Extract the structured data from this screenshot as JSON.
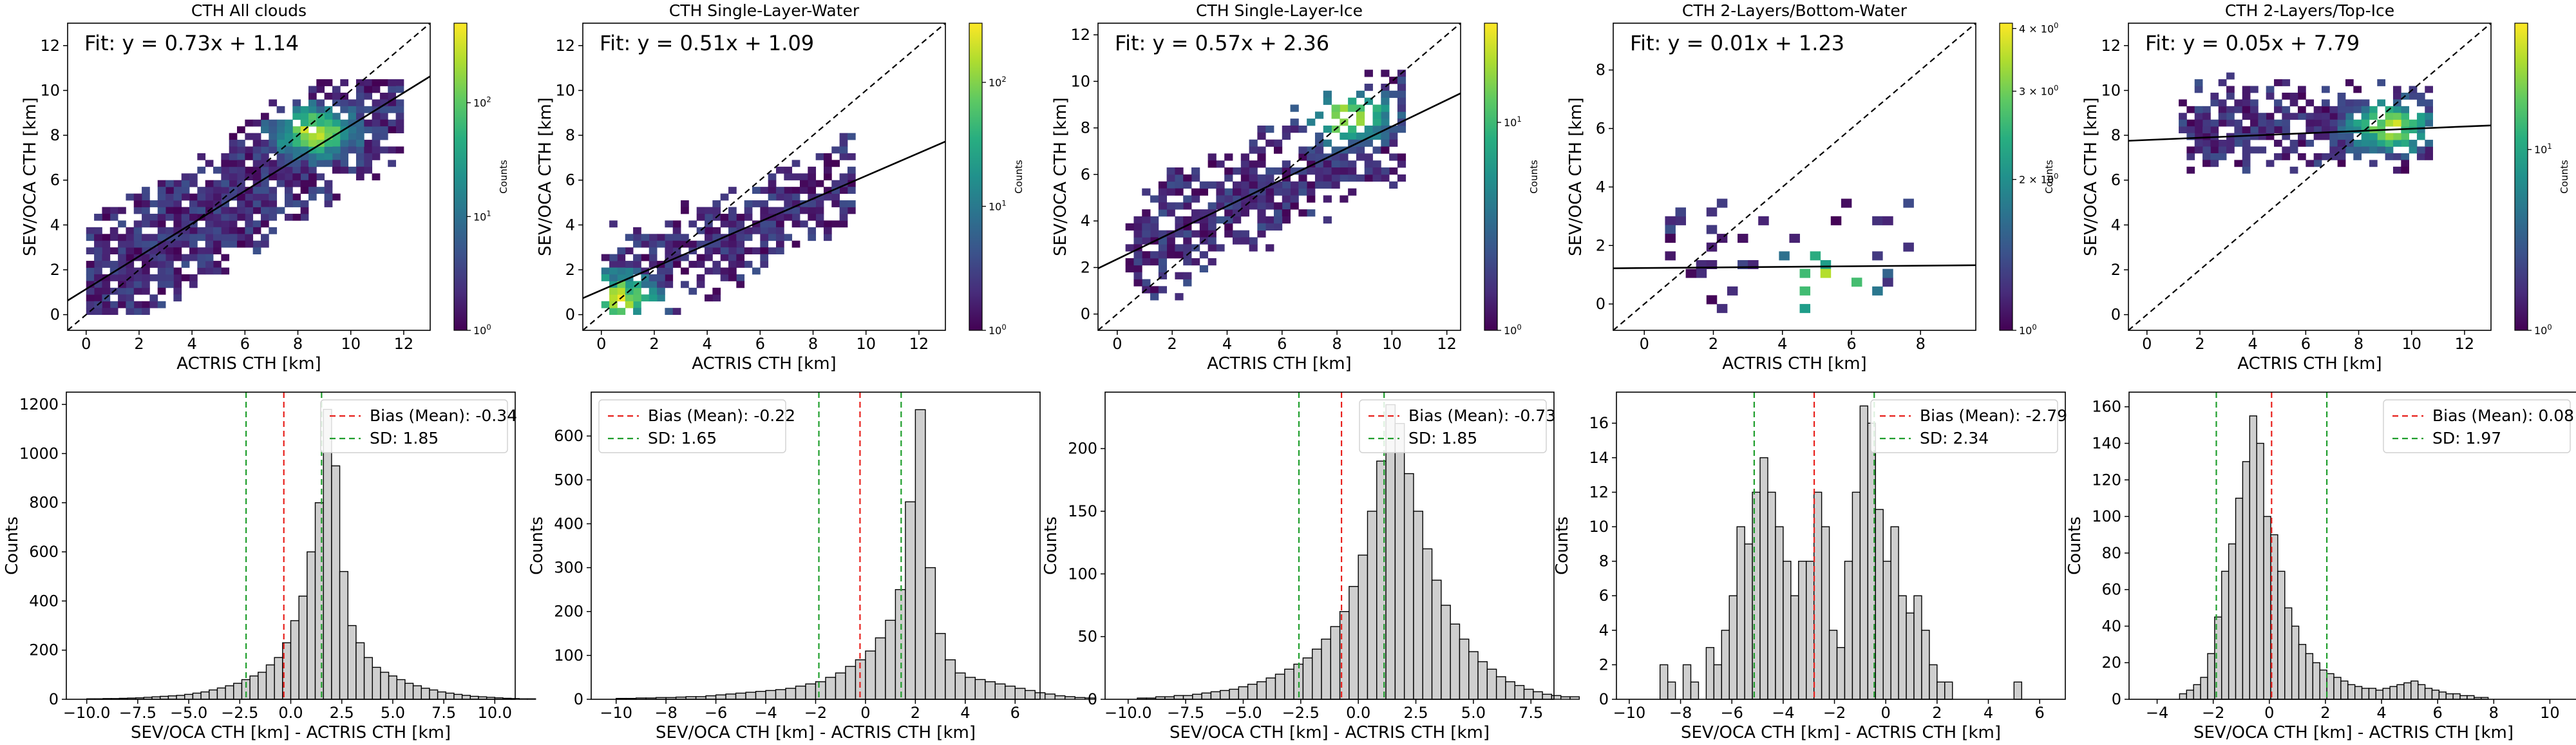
{
  "figure": {
    "colorbar_label": "Counts"
  },
  "chart_data": [
    {
      "type": "heatmap",
      "title": "CTH All clouds",
      "xlabel": "ACTRIS CTH [km]",
      "ylabel": "SEV/OCA CTH [km]",
      "fit_text": "Fit: y = 0.73x + 1.14",
      "fit": {
        "slope": 0.73,
        "intercept": 1.14
      },
      "xlim": [
        -0.7,
        13.0
      ],
      "ylim": [
        -0.7,
        13.0
      ],
      "xticks": [
        0,
        2,
        4,
        6,
        8,
        10,
        12
      ],
      "yticks": [
        0,
        2,
        4,
        6,
        8,
        10,
        12
      ],
      "one_to_one_line": true,
      "colorbar": {
        "scale": "log",
        "ticks": [
          "10^0",
          "10^1",
          "10^2"
        ],
        "min": 1,
        "max": 500
      },
      "density": {
        "mode": "diag",
        "xrange": [
          0.0,
          12.0
        ],
        "yrange": [
          0.0,
          10.5
        ],
        "n": 1700,
        "seed": 11,
        "spread": 1.4,
        "hot": [
          8.5,
          8.0
        ],
        "fill": 0.75
      }
    },
    {
      "type": "heatmap",
      "title": "CTH Single-Layer-Water",
      "xlabel": "ACTRIS CTH [km]",
      "ylabel": "SEV/OCA CTH [km]",
      "fit_text": "Fit: y = 0.51x + 1.09",
      "fit": {
        "slope": 0.51,
        "intercept": 1.09
      },
      "xlim": [
        -0.7,
        13.0
      ],
      "ylim": [
        -0.7,
        13.0
      ],
      "xticks": [
        0,
        2,
        4,
        6,
        8,
        10,
        12
      ],
      "yticks": [
        0,
        2,
        4,
        6,
        8,
        10,
        12
      ],
      "one_to_one_line": true,
      "colorbar": {
        "scale": "log",
        "ticks": [
          "10^0",
          "10^1",
          "10^2"
        ],
        "min": 1,
        "max": 300
      },
      "density": {
        "mode": "diag",
        "xrange": [
          0.0,
          9.5
        ],
        "yrange": [
          0.0,
          8.2
        ],
        "n": 800,
        "seed": 23,
        "spread": 1.2,
        "hot": [
          0.5,
          0.6
        ],
        "fill": 0.55
      }
    },
    {
      "type": "heatmap",
      "title": "CTH Single-Layer-Ice",
      "xlabel": "ACTRIS CTH [km]",
      "ylabel": "SEV/OCA CTH [km]",
      "fit_text": "Fit: y = 0.57x + 2.36",
      "fit": {
        "slope": 0.57,
        "intercept": 2.36
      },
      "xlim": [
        -0.7,
        12.5
      ],
      "ylim": [
        -0.7,
        12.5
      ],
      "xticks": [
        0,
        2,
        4,
        6,
        8,
        10,
        12
      ],
      "yticks": [
        0,
        2,
        4,
        6,
        8,
        10,
        12
      ],
      "one_to_one_line": true,
      "colorbar": {
        "scale": "log",
        "ticks": [
          "10^0",
          "10^1"
        ],
        "min": 1,
        "max": 30
      },
      "density": {
        "mode": "diag",
        "xrange": [
          0.5,
          10.5
        ],
        "yrange": [
          0.8,
          10.5
        ],
        "n": 900,
        "seed": 37,
        "spread": 1.3,
        "hot": [
          8.3,
          8.3
        ],
        "fill": 0.6
      }
    },
    {
      "type": "heatmap",
      "title": "CTH 2-Layers/Bottom-Water",
      "xlabel": "ACTRIS CTH [km]",
      "ylabel": "SEV/OCA CTH [km]",
      "fit_text": "Fit: y = 0.01x + 1.23",
      "fit": {
        "slope": 0.01,
        "intercept": 1.23
      },
      "xlim": [
        -0.9,
        9.6
      ],
      "ylim": [
        -0.9,
        9.6
      ],
      "xticks": [
        0,
        2,
        4,
        6,
        8
      ],
      "yticks": [
        0,
        2,
        4,
        6,
        8
      ],
      "one_to_one_line": true,
      "colorbar": {
        "scale": "log",
        "ticks": [
          "10^0",
          "2 × 10^0",
          "3 × 10^0",
          "4 × 10^0"
        ],
        "tick_values": [
          1,
          2,
          3,
          4
        ],
        "min": 1,
        "max": 4.1
      },
      "density": {
        "mode": "flat",
        "xrange": [
          0.5,
          7.8
        ],
        "yrange": [
          -0.2,
          3.5
        ],
        "n": 120,
        "seed": 41,
        "spread": 1.0,
        "hot": [
          5.0,
          0.6
        ],
        "fill": 0.35
      }
    },
    {
      "type": "heatmap",
      "title": "CTH 2-Layers/Top-Ice",
      "xlabel": "ACTRIS CTH [km]",
      "ylabel": "SEV/OCA CTH [km]",
      "fit_text": "Fit: y = 0.05x + 7.79",
      "fit": {
        "slope": 0.05,
        "intercept": 7.79
      },
      "xlim": [
        -0.7,
        13.0
      ],
      "ylim": [
        -0.7,
        13.0
      ],
      "xticks": [
        0,
        2,
        4,
        6,
        8,
        10,
        12
      ],
      "yticks": [
        0,
        2,
        4,
        6,
        8,
        10,
        12
      ],
      "one_to_one_line": true,
      "colorbar": {
        "scale": "log",
        "ticks": [
          "10^0",
          "10^1"
        ],
        "min": 1,
        "max": 50
      },
      "density": {
        "mode": "band",
        "xrange": [
          1.3,
          10.8
        ],
        "yrange": [
          6.2,
          10.6
        ],
        "n": 650,
        "seed": 53,
        "spread": 1.0,
        "hot": [
          9.0,
          8.2
        ],
        "fill": 0.65
      }
    },
    {
      "type": "bar",
      "subtype": "histogram",
      "xlabel": "SEV/OCA CTH [km] - ACTRIS CTH [km]",
      "ylabel": "Counts",
      "xlim": [
        -11,
        11
      ],
      "ylim": [
        0,
        1250
      ],
      "xticks": [
        -10.0,
        -7.5,
        -5.0,
        -2.5,
        0.0,
        2.5,
        5.0,
        7.5,
        10.0
      ],
      "xtick_labels": [
        "−10.0",
        "−7.5",
        "−5.0",
        "−2.5",
        "0.0",
        "2.5",
        "5.0",
        "7.5",
        "10.0"
      ],
      "yticks": [
        0,
        200,
        400,
        600,
        800,
        1000,
        1200
      ],
      "bin_start": -10.0,
      "bin_width": 0.4,
      "counts": [
        2,
        2,
        3,
        3,
        4,
        5,
        6,
        8,
        10,
        12,
        14,
        16,
        20,
        25,
        30,
        38,
        46,
        55,
        65,
        80,
        95,
        110,
        140,
        170,
        230,
        320,
        420,
        600,
        800,
        1180,
        950,
        520,
        300,
        230,
        170,
        130,
        110,
        95,
        80,
        65,
        55,
        45,
        38,
        30,
        25,
        20,
        16,
        12,
        10,
        8,
        6,
        4,
        3,
        2,
        2
      ],
      "bias": -0.34,
      "bias_label": "Bias (Mean): -0.34",
      "sd": 1.85,
      "sd_label": "SD: 1.85",
      "legend": "top-right"
    },
    {
      "type": "bar",
      "subtype": "histogram",
      "xlabel": "SEV/OCA CTH [km] - ACTRIS CTH [km]",
      "ylabel": "Counts",
      "xlim": [
        -11,
        7
      ],
      "ylim": [
        0,
        700
      ],
      "xticks": [
        -10,
        -8,
        -6,
        -4,
        -2,
        0,
        2,
        4,
        6
      ],
      "xtick_labels": [
        "−10",
        "−8",
        "−6",
        "−4",
        "−2",
        "0",
        "2",
        "4",
        "6"
      ],
      "yticks": [
        0,
        100,
        200,
        300,
        400,
        500,
        600
      ],
      "bin_start": -10.0,
      "bin_width": 0.4,
      "counts": [
        2,
        2,
        3,
        3,
        4,
        4,
        5,
        6,
        6,
        8,
        10,
        12,
        14,
        16,
        18,
        20,
        22,
        25,
        30,
        35,
        40,
        50,
        60,
        75,
        90,
        110,
        140,
        180,
        250,
        450,
        660,
        300,
        150,
        90,
        60,
        50,
        45,
        40,
        35,
        30,
        25,
        20,
        15,
        12,
        8,
        6,
        4,
        3
      ],
      "bias": -0.22,
      "bias_label": "Bias (Mean): -0.22",
      "sd": 1.65,
      "sd_label": "SD: 1.65",
      "legend": "top-left"
    },
    {
      "type": "bar",
      "subtype": "histogram",
      "xlabel": "SEV/OCA CTH [km] - ACTRIS CTH [km]",
      "ylabel": "Counts",
      "xlim": [
        -11,
        8.5
      ],
      "ylim": [
        0,
        245
      ],
      "xticks": [
        -10.0,
        -7.5,
        -5.0,
        -2.5,
        0.0,
        2.5,
        5.0,
        7.5
      ],
      "xtick_labels": [
        "−10.0",
        "−7.5",
        "−5.0",
        "−2.5",
        "0.0",
        "2.5",
        "5.0",
        "7.5"
      ],
      "yticks": [
        0,
        50,
        100,
        150,
        200
      ],
      "bin_start": -9.6,
      "bin_width": 0.4,
      "counts": [
        1,
        1,
        2,
        2,
        3,
        3,
        4,
        5,
        6,
        7,
        8,
        10,
        12,
        14,
        17,
        20,
        24,
        28,
        33,
        40,
        48,
        58,
        70,
        90,
        115,
        150,
        190,
        235,
        220,
        180,
        150,
        120,
        95,
        75,
        60,
        48,
        38,
        30,
        24,
        18,
        14,
        11,
        8,
        6,
        4,
        3,
        2,
        2
      ],
      "bias": -0.73,
      "bias_label": "Bias (Mean): -0.73",
      "sd": 1.85,
      "sd_label": "SD: 1.85",
      "legend": "top-right"
    },
    {
      "type": "bar",
      "subtype": "histogram",
      "xlabel": "SEV/OCA CTH [km] - ACTRIS CTH [km]",
      "ylabel": "Counts",
      "xlim": [
        -10.5,
        7
      ],
      "ylim": [
        0,
        17.8
      ],
      "xticks": [
        -10,
        -8,
        -6,
        -4,
        -2,
        0,
        2,
        4,
        6
      ],
      "xtick_labels": [
        "−10",
        "−8",
        "−6",
        "−4",
        "−2",
        "0",
        "2",
        "4",
        "6"
      ],
      "yticks": [
        0,
        2,
        4,
        6,
        8,
        10,
        12,
        14,
        16
      ],
      "bin_start": -8.8,
      "bin_width": 0.3,
      "counts": [
        2,
        1,
        0,
        2,
        1,
        0,
        3,
        2,
        4,
        6,
        10,
        9,
        12,
        14,
        12,
        10,
        8,
        6,
        8,
        8,
        12,
        10,
        4,
        3,
        8,
        12,
        17,
        16,
        11,
        8,
        10,
        6,
        5,
        6,
        4,
        2,
        1,
        1,
        0,
        0,
        0,
        0,
        0,
        0,
        0,
        0,
        1
      ],
      "bias": -2.79,
      "bias_label": "Bias (Mean): -2.79",
      "sd": 2.34,
      "sd_label": "SD: 2.34",
      "legend": "top-right"
    },
    {
      "type": "bar",
      "subtype": "histogram",
      "xlabel": "SEV/OCA CTH [km] - ACTRIS CTH [km]",
      "ylabel": "Counts",
      "xlim": [
        -5,
        11
      ],
      "ylim": [
        0,
        168
      ],
      "xticks": [
        -4,
        -2,
        0,
        2,
        4,
        6,
        8,
        10
      ],
      "xtick_labels": [
        "−4",
        "−2",
        "0",
        "2",
        "4",
        "6",
        "8",
        "10"
      ],
      "yticks": [
        0,
        20,
        40,
        60,
        80,
        100,
        120,
        140,
        160
      ],
      "bin_start": -3.2,
      "bin_width": 0.25,
      "counts": [
        3,
        5,
        8,
        12,
        25,
        45,
        70,
        85,
        110,
        130,
        155,
        140,
        100,
        90,
        70,
        50,
        40,
        30,
        25,
        20,
        16,
        14,
        12,
        10,
        8,
        7,
        6,
        6,
        5,
        6,
        7,
        8,
        9,
        10,
        8,
        6,
        5,
        4,
        3,
        3,
        2,
        2,
        1,
        1
      ],
      "bias": 0.08,
      "bias_label": "Bias (Mean): 0.08",
      "sd": 1.97,
      "sd_label": "SD: 1.97",
      "legend": "top-right"
    }
  ]
}
